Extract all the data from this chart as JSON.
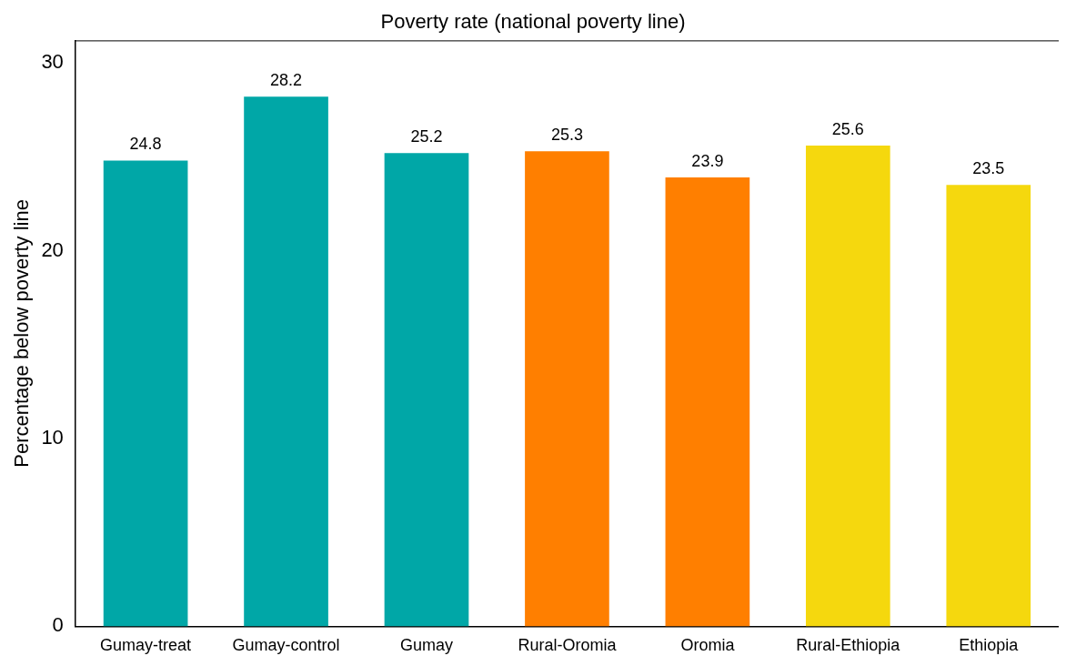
{
  "chart_data": {
    "type": "bar",
    "title": "Poverty rate (national poverty line)",
    "ylabel": "Percentage below poverty line",
    "categories": [
      "Gumay-treat",
      "Gumay-control",
      "Gumay",
      "Rural-Oromia",
      "Oromia",
      "Rural-Ethiopia",
      "Ethiopia"
    ],
    "values": [
      24.8,
      28.2,
      25.2,
      25.3,
      23.9,
      25.6,
      23.5
    ],
    "colors": [
      "#00a7a7",
      "#00a7a7",
      "#00a7a7",
      "#ff7f00",
      "#ff7f00",
      "#f5d80e",
      "#f5d80e"
    ],
    "ylim": [
      0,
      31.2
    ],
    "yticks": [
      0,
      10,
      20,
      30
    ],
    "grid": false,
    "legend": false,
    "data_labels": true
  }
}
